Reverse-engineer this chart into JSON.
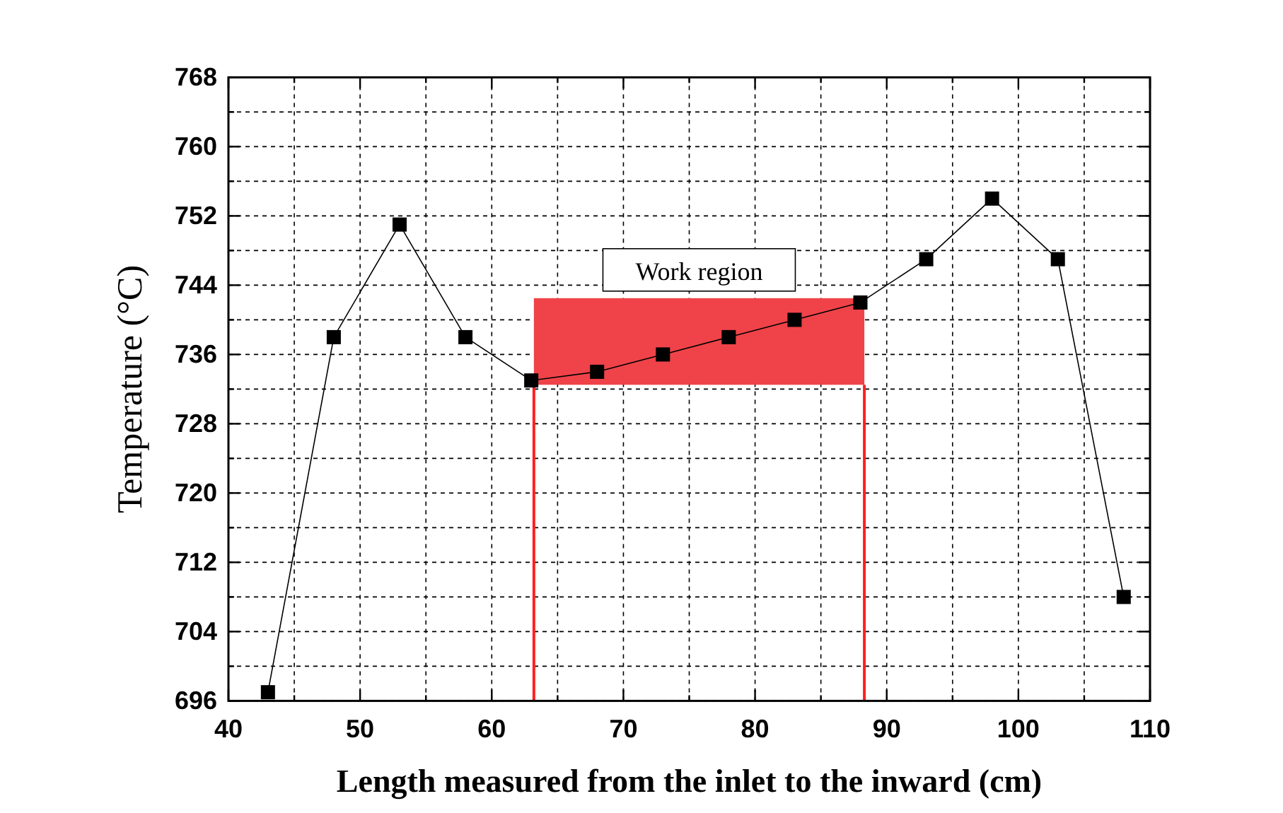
{
  "chart_data": {
    "type": "line",
    "xlabel": "Length measured from the inlet to the inward (cm)",
    "ylabel": "Temperature (°C)",
    "x": [
      43,
      48,
      53,
      58,
      63,
      68,
      73,
      78,
      83,
      88,
      93,
      98,
      103,
      108
    ],
    "series": [
      {
        "color": "#000000",
        "values": [
          697,
          738,
          751,
          738,
          733,
          734,
          736,
          738,
          740,
          742,
          747,
          754,
          747,
          708
        ]
      }
    ],
    "xlim": [
      40,
      110
    ],
    "ylim": [
      696,
      768
    ],
    "xticks": [
      40,
      {
        "value": 45,
        "label": null
      },
      50,
      {
        "value": 55,
        "label": null
      },
      60,
      {
        "value": 65,
        "label": null
      },
      70,
      {
        "value": 75,
        "label": null
      },
      80,
      {
        "value": 85,
        "label": null
      },
      90,
      {
        "value": 95,
        "label": null
      },
      100,
      {
        "value": 105,
        "label": null
      },
      110
    ],
    "yticks": [
      696,
      {
        "value": 700,
        "label": null
      },
      704,
      {
        "value": 708,
        "label": null
      },
      712,
      {
        "value": 716,
        "label": null
      },
      720,
      {
        "value": 724,
        "label": null
      },
      728,
      {
        "value": 732,
        "label": null
      },
      736,
      {
        "value": 740,
        "label": null
      },
      744,
      {
        "value": 748,
        "label": null
      },
      752,
      {
        "value": 756,
        "label": null
      },
      760,
      {
        "value": 764,
        "label": null
      },
      768
    ],
    "grid": true,
    "marker": "square",
    "line_style": "solid",
    "bands": [
      {
        "axis": "y",
        "from": 732.5,
        "to": 742.5,
        "label": "Work region",
        "color": "#ef4349"
      }
    ],
    "ref_lines": [
      {
        "axis": "x",
        "value": 63.2,
        "color": "#ff2020"
      },
      {
        "axis": "x",
        "value": 88.3,
        "color": "#ff2020"
      }
    ]
  }
}
